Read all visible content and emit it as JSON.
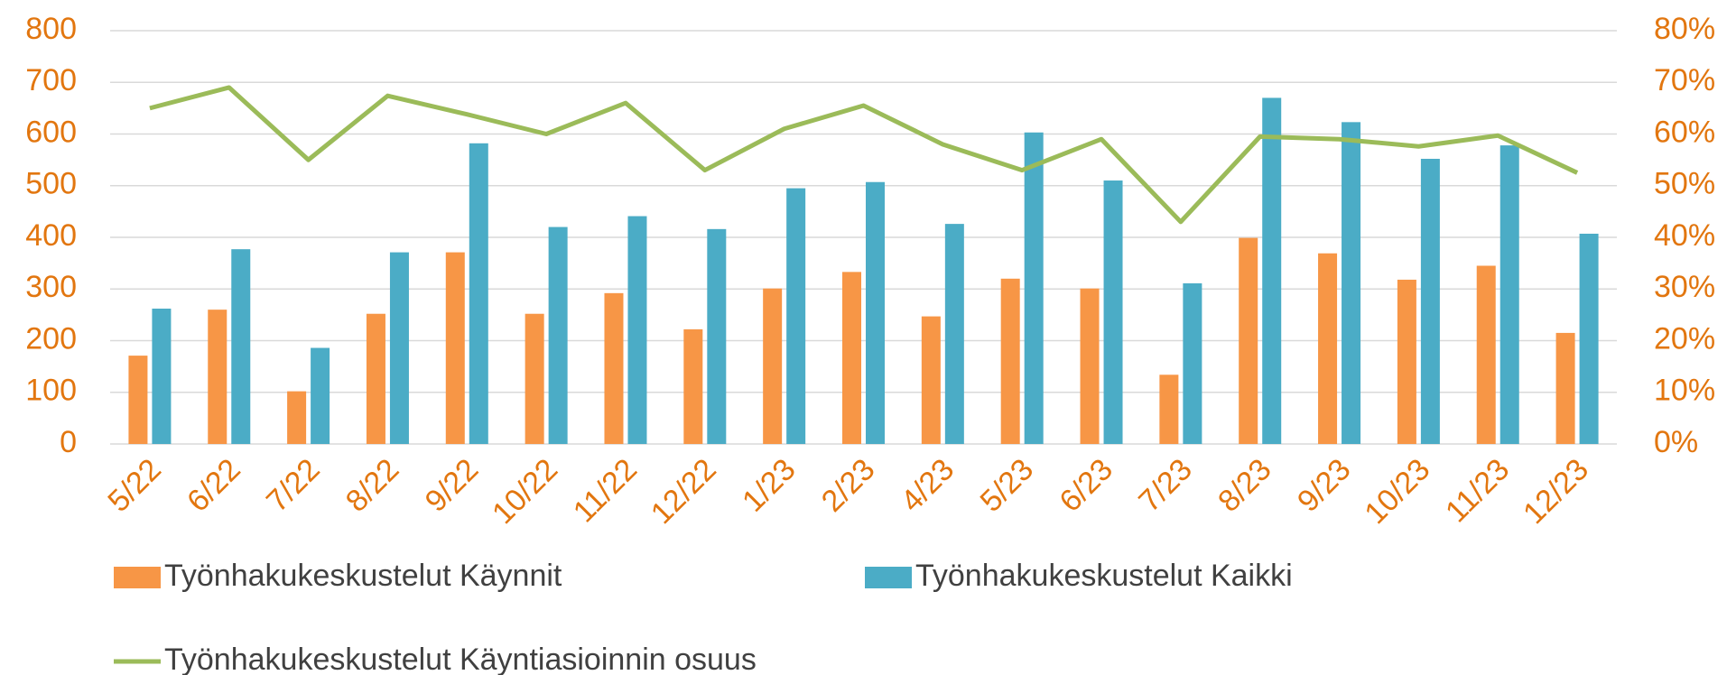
{
  "chart_data": {
    "type": "bar_line",
    "categories": [
      "5/22",
      "6/22",
      "7/22",
      "8/22",
      "9/22",
      "10/22",
      "11/22",
      "12/22",
      "1/23",
      "2/23",
      "4/23",
      "5/23",
      "6/23",
      "7/23",
      "8/23",
      "9/23",
      "10/23",
      "11/23",
      "12/23"
    ],
    "series": [
      {
        "name": "Työnhakukeskustelut Käynnit",
        "type": "bar",
        "color": "#f79646",
        "values": [
          171,
          260,
          102,
          252,
          371,
          252,
          292,
          222,
          301,
          333,
          247,
          320,
          301,
          134,
          399,
          369,
          318,
          345,
          215
        ]
      },
      {
        "name": "Työnhakukeskustelut Kaikki",
        "type": "bar",
        "color": "#4bacc6",
        "values": [
          262,
          377,
          186,
          371,
          582,
          420,
          441,
          416,
          495,
          507,
          426,
          603,
          510,
          311,
          670,
          623,
          552,
          578,
          407
        ]
      },
      {
        "name": "Työnhakukeskustelut Käyntiasioinnin osuus",
        "type": "line",
        "color": "#9bbb59",
        "axis": "y2",
        "values": [
          65,
          69,
          55,
          67.4,
          63.8,
          60,
          66,
          53,
          61,
          65.5,
          58,
          53,
          59,
          43,
          59.5,
          59,
          57.6,
          59.7,
          52.5
        ]
      }
    ],
    "ylim": [
      0,
      800
    ],
    "yticks": [
      0,
      100,
      200,
      300,
      400,
      500,
      600,
      700,
      800
    ],
    "y2lim": [
      0,
      80
    ],
    "y2ticks": [
      {
        "value": 0,
        "label": "0%"
      },
      {
        "value": 10,
        "label": "10%"
      },
      {
        "value": 20,
        "label": "20%"
      },
      {
        "value": 30,
        "label": "30%"
      },
      {
        "value": 40,
        "label": "40%"
      },
      {
        "value": 50,
        "label": "50%"
      },
      {
        "value": 60,
        "label": "60%"
      },
      {
        "value": 70,
        "label": "70%"
      },
      {
        "value": 80,
        "label": "80%"
      }
    ],
    "grid": true
  }
}
